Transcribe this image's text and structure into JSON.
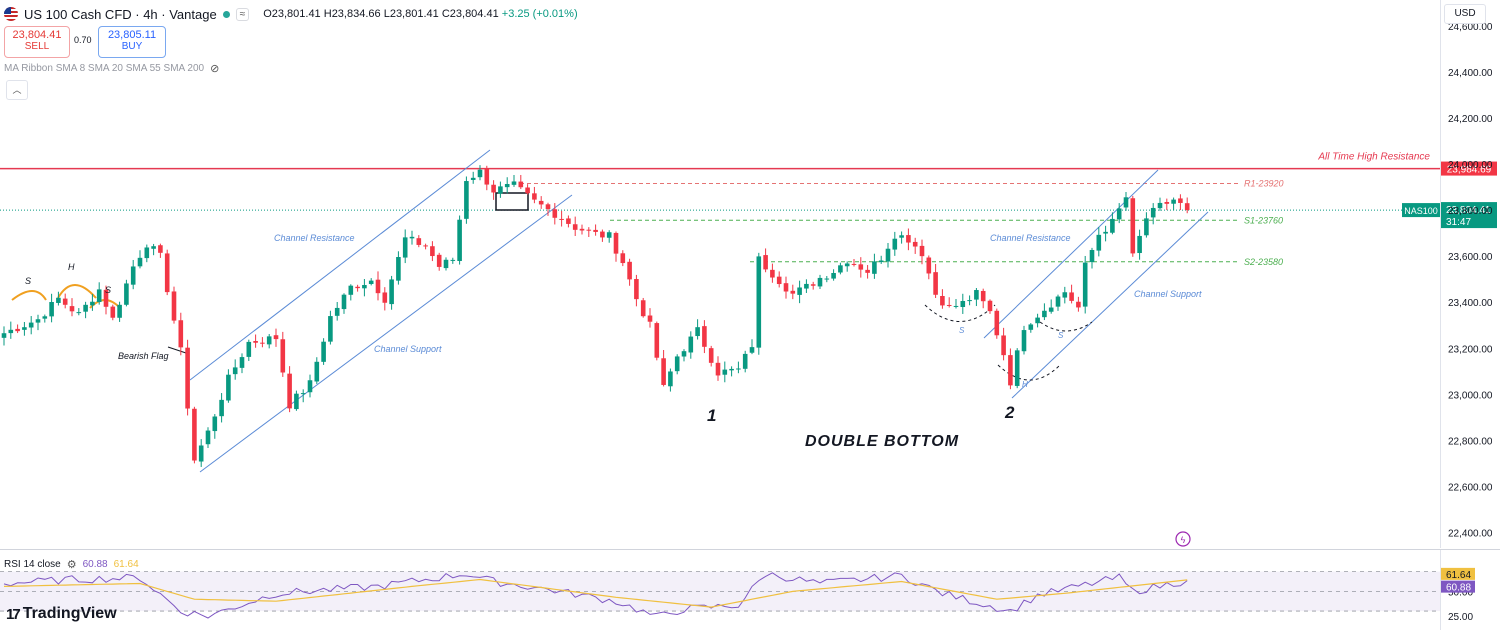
{
  "header": {
    "title": "US 100 Cash CFD · 4h · Vantage",
    "open": "O23,801.41",
    "high": "H23,834.66",
    "low": "L23,801.41",
    "close": "C23,804.41",
    "change": "+3.25 (+0.01%)"
  },
  "trade": {
    "sell_price": "23,804.41",
    "sell_label": "SELL",
    "spread": "0.70",
    "buy_price": "23,805.11",
    "buy_label": "BUY"
  },
  "indicator_label": "MA Ribbon SMA 8 SMA 20 SMA 55 SMA 200",
  "currency": "USD",
  "rsi": {
    "label": "RSI 14 close",
    "value": "60.88",
    "ma_value": "61.64"
  },
  "brand": "TradingView",
  "colors": {
    "up": "#089981",
    "down": "#f23645",
    "channel": "#5b8bd6",
    "resistance": "#e53950",
    "support": "#4caf50",
    "rsi": "#7e57c2",
    "rsi_ma": "#f0c040"
  },
  "chart_data": [
    {
      "type": "candlestick",
      "instrument": "NAS100",
      "price_axis": {
        "ticks": [
          "24,600.00",
          "24,400.00",
          "24,200.00",
          "24,000.00",
          "23,800.00",
          "23,600.00",
          "23,400.00",
          "23,200.00",
          "23,000.00",
          "22,800.00",
          "22,600.00",
          "22,400.00"
        ],
        "range": [
          22340,
          24640
        ]
      },
      "levels": [
        {
          "name": "All Time High Resistance",
          "price": 23984.69,
          "label": "23,984.69",
          "color": "#e53950"
        },
        {
          "name": "R1-23920",
          "price": 23920,
          "color": "#e57373"
        },
        {
          "name": "S1-23760",
          "price": 23760,
          "color": "#4caf50"
        },
        {
          "name": "S2-23580",
          "price": 23580,
          "color": "#4caf50"
        }
      ],
      "last_price": {
        "symbol": "NAS100",
        "price": "23,804.41",
        "countdown": "31:47"
      },
      "annotations": [
        "Channel Resistance",
        "Channel Support",
        "Channel Resistance",
        "Channel Support",
        "Bearish Flag",
        "S",
        "H",
        "S",
        "S",
        "H",
        "S",
        "1",
        "2",
        "DOUBLE BOTTOM"
      ],
      "waypoints": [
        [
          0,
          23270
        ],
        [
          5,
          23330
        ],
        [
          8,
          23420
        ],
        [
          11,
          23350
        ],
        [
          14,
          23460
        ],
        [
          16,
          23330
        ],
        [
          19,
          23560
        ],
        [
          21,
          23660
        ],
        [
          23,
          23600
        ],
        [
          26,
          23190
        ],
        [
          28,
          22720
        ],
        [
          30,
          22840
        ],
        [
          33,
          23070
        ],
        [
          36,
          23230
        ],
        [
          40,
          23250
        ],
        [
          42,
          22960
        ],
        [
          45,
          23050
        ],
        [
          48,
          23340
        ],
        [
          51,
          23470
        ],
        [
          54,
          23500
        ],
        [
          56,
          23420
        ],
        [
          59,
          23680
        ],
        [
          62,
          23650
        ],
        [
          64,
          23560
        ],
        [
          66,
          23590
        ],
        [
          68,
          23940
        ],
        [
          70,
          23970
        ],
        [
          72,
          23890
        ],
        [
          75,
          23910
        ],
        [
          78,
          23840
        ],
        [
          81,
          23790
        ],
        [
          84,
          23730
        ],
        [
          87,
          23700
        ],
        [
          89,
          23690
        ],
        [
          91,
          23580
        ],
        [
          93,
          23420
        ],
        [
          95,
          23300
        ],
        [
          97,
          23030
        ],
        [
          99,
          23170
        ],
        [
          102,
          23280
        ],
        [
          105,
          23100
        ],
        [
          108,
          23110
        ],
        [
          110,
          23220
        ],
        [
          111,
          23590
        ],
        [
          113,
          23530
        ],
        [
          116,
          23440
        ],
        [
          118,
          23470
        ],
        [
          120,
          23510
        ],
        [
          122,
          23540
        ],
        [
          124,
          23590
        ],
        [
          127,
          23540
        ],
        [
          129,
          23600
        ],
        [
          131,
          23700
        ],
        [
          133,
          23680
        ],
        [
          135,
          23620
        ],
        [
          137,
          23440
        ],
        [
          139,
          23380
        ],
        [
          141,
          23400
        ],
        [
          143,
          23440
        ],
        [
          145,
          23360
        ],
        [
          147,
          23180
        ],
        [
          148,
          23060
        ],
        [
          150,
          23300
        ],
        [
          152,
          23350
        ],
        [
          154,
          23400
        ],
        [
          156,
          23450
        ],
        [
          158,
          23380
        ],
        [
          159,
          23560
        ],
        [
          161,
          23700
        ],
        [
          163,
          23750
        ],
        [
          165,
          23860
        ],
        [
          166,
          23600
        ],
        [
          168,
          23770
        ],
        [
          170,
          23820
        ],
        [
          172,
          23850
        ],
        [
          174,
          23804.41
        ]
      ]
    },
    {
      "type": "line",
      "title": "RSI 14 close",
      "y_ticks": [
        "50.00",
        "25.00"
      ],
      "levels": [
        70,
        50,
        30
      ],
      "current": {
        "rsi": 60.88,
        "rsi_ma": 61.64
      },
      "series": [
        {
          "values": [
            [
              0,
              58
            ],
            [
              10,
              62
            ],
            [
              20,
              64
            ],
            [
              26,
              30
            ],
            [
              30,
              25
            ],
            [
              40,
              48
            ],
            [
              55,
              55
            ],
            [
              68,
              68
            ],
            [
              72,
              60
            ],
            [
              80,
              52
            ],
            [
              90,
              40
            ],
            [
              96,
              24
            ],
            [
              100,
              32
            ],
            [
              108,
              36
            ],
            [
              112,
              68
            ],
            [
              120,
              58
            ],
            [
              132,
              66
            ],
            [
              138,
              48
            ],
            [
              148,
              30
            ],
            [
              152,
              46
            ],
            [
              164,
              64
            ],
            [
              166,
              50
            ],
            [
              174,
              60.88
            ]
          ]
        },
        {
          "values": [
            [
              0,
              55
            ],
            [
              20,
              58
            ],
            [
              28,
              42
            ],
            [
              40,
              40
            ],
            [
              60,
              55
            ],
            [
              70,
              62
            ],
            [
              90,
              44
            ],
            [
              104,
              34
            ],
            [
              116,
              50
            ],
            [
              132,
              60
            ],
            [
              146,
              42
            ],
            [
              156,
              48
            ],
            [
              174,
              61.64
            ]
          ]
        }
      ]
    }
  ]
}
